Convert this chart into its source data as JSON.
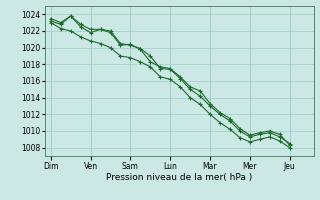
{
  "background_color": "#cce8e4",
  "grid_color": "#9ececa",
  "line_color": "#1a6b2a",
  "xlabel": "Pression niveau de la mer( hPa )",
  "ylim": [
    1007,
    1025
  ],
  "yticks": [
    1008,
    1010,
    1012,
    1014,
    1016,
    1018,
    1020,
    1022,
    1024
  ],
  "day_labels": [
    "Dim",
    "Ven",
    "Sam",
    "Lun",
    "Mar",
    "Mer",
    "Jeu"
  ],
  "day_positions": [
    0,
    1,
    2,
    3,
    4,
    5,
    6
  ],
  "series1": [
    1023.2,
    1022.8,
    1023.8,
    1022.5,
    1021.8,
    1022.2,
    1022.0,
    1020.5,
    1020.3,
    1019.9,
    1019.0,
    1017.5,
    1017.4,
    1016.3,
    1015.0,
    1014.2,
    1013.0,
    1012.0,
    1011.2,
    1010.0,
    1009.3,
    1009.6,
    1009.8,
    1009.3,
    1008.5
  ],
  "series2": [
    1023.5,
    1023.0,
    1023.8,
    1022.8,
    1022.2,
    1022.2,
    1021.8,
    1020.3,
    1020.4,
    1019.8,
    1018.3,
    1017.7,
    1017.5,
    1016.5,
    1015.3,
    1014.8,
    1013.3,
    1012.2,
    1011.5,
    1010.3,
    1009.5,
    1009.8,
    1010.0,
    1009.6,
    1008.3
  ],
  "series3": [
    1023.0,
    1022.3,
    1022.0,
    1021.3,
    1020.8,
    1020.5,
    1020.0,
    1019.0,
    1018.8,
    1018.3,
    1017.7,
    1016.5,
    1016.2,
    1015.3,
    1014.0,
    1013.2,
    1012.0,
    1011.0,
    1010.2,
    1009.2,
    1008.7,
    1009.0,
    1009.3,
    1008.8,
    1008.0
  ]
}
